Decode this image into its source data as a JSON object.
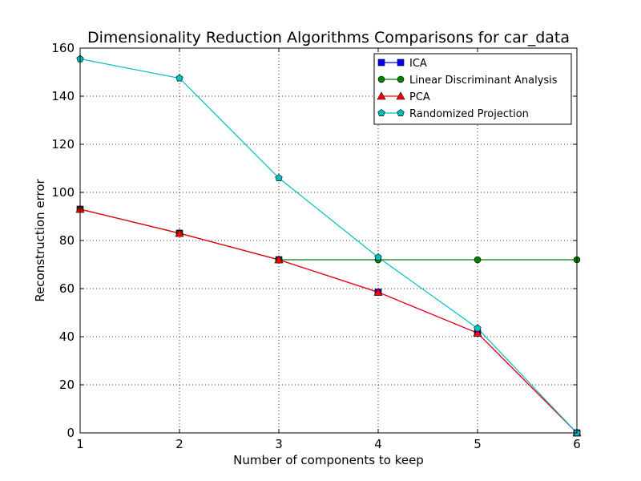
{
  "chart_data": {
    "type": "line",
    "title": "Dimensionality Reduction Algorithms Comparisons for car_data",
    "xlabel": "Number of components to keep",
    "ylabel": "Reconstruction error",
    "x": [
      1,
      2,
      3,
      4,
      5,
      6
    ],
    "xlim": [
      1,
      6
    ],
    "ylim": [
      0,
      160
    ],
    "xticks": [
      1,
      2,
      3,
      4,
      5,
      6
    ],
    "yticks": [
      0,
      20,
      40,
      60,
      80,
      100,
      120,
      140,
      160
    ],
    "grid": true,
    "legend_position": "top-right",
    "series": [
      {
        "name": "ICA",
        "color": "#0000ff",
        "marker": "square",
        "values": [
          93,
          83,
          72,
          58.5,
          41.5,
          0
        ]
      },
      {
        "name": "Linear Discriminant Analysis",
        "color": "#008000",
        "marker": "circle",
        "values": [
          93,
          83,
          72,
          72,
          72,
          72
        ]
      },
      {
        "name": "PCA",
        "color": "#ff0000",
        "marker": "triangle",
        "values": [
          93,
          83,
          72,
          58.5,
          41.5,
          0
        ]
      },
      {
        "name": "Randomized Projection",
        "color": "#00bfbf",
        "marker": "pentagon",
        "values": [
          155.5,
          147.5,
          106,
          73,
          43.5,
          0
        ]
      }
    ]
  }
}
